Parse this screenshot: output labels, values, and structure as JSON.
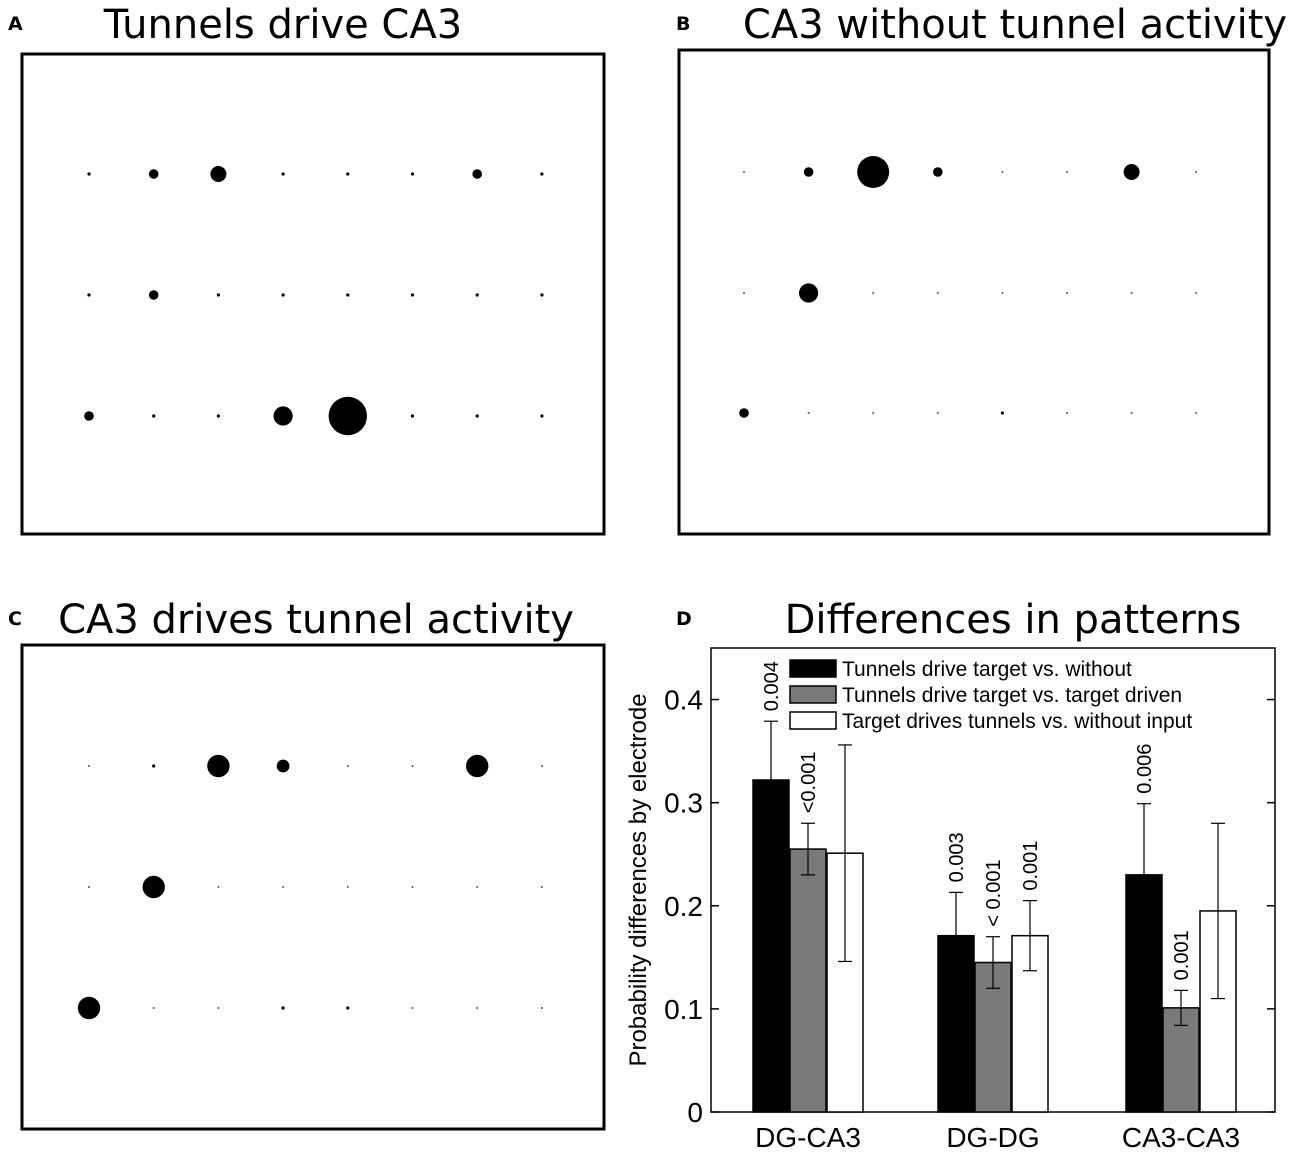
{
  "panels": {
    "A": {
      "letter": "A",
      "title": "Tunnels drive CA3"
    },
    "B": {
      "letter": "B",
      "title": "CA3 without tunnel activity"
    },
    "C": {
      "letter": "C",
      "title": "CA3 drives tunnel activity"
    }
  },
  "colors": {
    "dot": "#000000",
    "black_bar": "#000000",
    "gray_bar": "#7a7a7a",
    "white_bar": "#ffffff"
  },
  "chart_data": [
    {
      "panel": "A",
      "type": "scatter",
      "title": "Tunnels drive CA3",
      "grid": {
        "rows": 3,
        "cols": 8
      },
      "description": "dot size = activity at each electrode (row, col); sizes are relative magnitudes",
      "sizes": [
        [
          1,
          3,
          5,
          1,
          1,
          1,
          3,
          1
        ],
        [
          1,
          3,
          1,
          1,
          1,
          1,
          1,
          1
        ],
        [
          3,
          1,
          1,
          6,
          12,
          1,
          1,
          1
        ]
      ]
    },
    {
      "panel": "B",
      "type": "scatter",
      "title": "CA3 without tunnel activity",
      "grid": {
        "rows": 3,
        "cols": 8
      },
      "sizes": [
        [
          0.5,
          3,
          10,
          3,
          0.5,
          0.5,
          5,
          0.5
        ],
        [
          0.5,
          6,
          0.5,
          0.5,
          0.5,
          0.5,
          0.5,
          0.5
        ],
        [
          3,
          0.5,
          0.5,
          0.5,
          1,
          0.5,
          0.5,
          0.5
        ]
      ]
    },
    {
      "panel": "C",
      "type": "scatter",
      "title": "CA3 drives tunnel activity",
      "grid": {
        "rows": 3,
        "cols": 8
      },
      "sizes": [
        [
          0.5,
          1,
          7,
          4,
          0.5,
          0.5,
          7,
          0.5
        ],
        [
          0.5,
          7,
          0.5,
          0.5,
          0.5,
          0.5,
          0.5,
          0.5
        ],
        [
          7,
          0.5,
          0.5,
          1,
          1,
          0.5,
          0.5,
          0.5
        ]
      ]
    },
    {
      "panel": "D",
      "letter": "D",
      "type": "bar",
      "title": "Differences in patterns",
      "ylabel": "Probability differences by electrode",
      "xlabel": "",
      "ylim": [
        0,
        0.45
      ],
      "yticks": [
        "0",
        "0.1",
        "0.2",
        "0.3",
        "0.4"
      ],
      "categories": [
        "DG-CA3",
        "DG-DG",
        "CA3-CA3"
      ],
      "series": [
        {
          "name": "Tunnels drive target vs. without",
          "color": "black",
          "values": [
            0.322,
            0.171,
            0.23
          ],
          "errors": [
            0.057,
            0.042,
            0.069
          ]
        },
        {
          "name": "Tunnels drive target vs. target driven",
          "color": "gray",
          "values": [
            0.255,
            0.145,
            0.101
          ],
          "errors": [
            0.025,
            0.025,
            0.017
          ]
        },
        {
          "name": "Target drives tunnels vs. without input",
          "color": "white",
          "values": [
            0.251,
            0.171,
            0.195
          ],
          "errors": [
            0.105,
            0.034,
            0.085
          ]
        }
      ],
      "pvalue_labels": [
        [
          "0.004",
          "<0.001",
          ""
        ],
        [
          "0.003",
          "< 0.001",
          "0.001"
        ],
        [
          "0.006",
          "0.001",
          ""
        ]
      ]
    }
  ]
}
